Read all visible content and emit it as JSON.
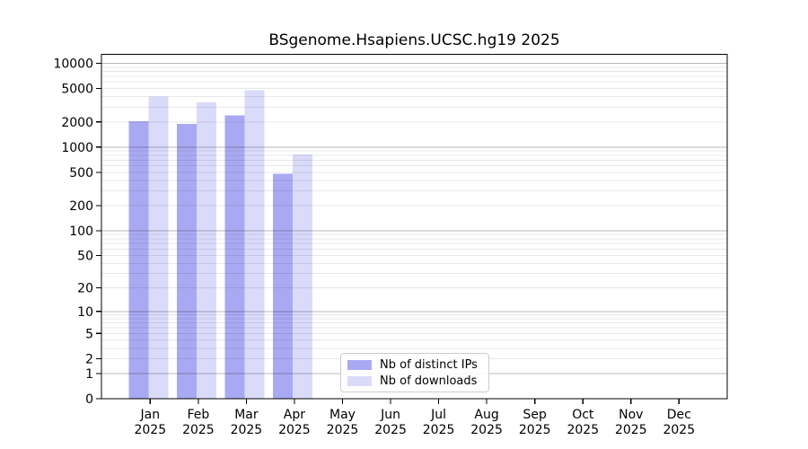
{
  "chart_data": {
    "type": "bar",
    "title": "BSgenome.Hsapiens.UCSC.hg19 2025",
    "categories": [
      "Jan",
      "Feb",
      "Mar",
      "Apr",
      "May",
      "Jun",
      "Jul",
      "Aug",
      "Sep",
      "Oct",
      "Nov",
      "Dec"
    ],
    "category_year": "2025",
    "series": [
      {
        "name": "Nb of distinct IPs",
        "color": "#a9a9f3",
        "values": [
          2050,
          1900,
          2390,
          480,
          null,
          null,
          null,
          null,
          null,
          null,
          null,
          null
        ]
      },
      {
        "name": "Nb of downloads",
        "color": "#dadaf9",
        "values": [
          4000,
          3440,
          4790,
          820,
          null,
          null,
          null,
          null,
          null,
          null,
          null,
          null
        ]
      }
    ],
    "y_axis": {
      "scale": "log1p",
      "ticks": [
        0,
        1,
        2,
        5,
        10,
        20,
        50,
        100,
        200,
        500,
        1000,
        2000,
        5000,
        10000
      ],
      "max": 12800
    },
    "x_axis": {
      "label_line2": "2025"
    },
    "grid": {
      "major": true,
      "minor": true
    },
    "legend": {
      "position": "bottom-center"
    }
  }
}
